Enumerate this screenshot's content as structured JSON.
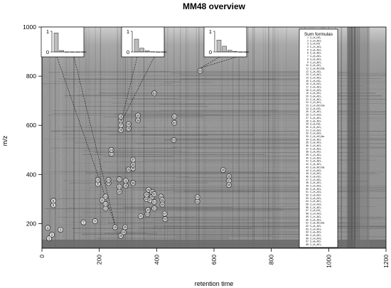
{
  "chart_data": {
    "type": "scatter",
    "title": "MM48 overview",
    "xlabel": "retention time",
    "ylabel": "m/z",
    "xlim": [
      0,
      1200
    ],
    "ylim": [
      100,
      1000
    ],
    "x_ticks": [
      0,
      200,
      400,
      600,
      800,
      1000,
      1200
    ],
    "y_ticks": [
      200,
      400,
      600,
      800,
      1000
    ],
    "background": "dense grayscale LC-MS signal map",
    "colors": {
      "plot_bg": "#8d8d8d",
      "signal_dark": "#2c2c2c",
      "marker_stroke": "#111111",
      "marker_fill": "#d8d8d8",
      "bar_fill": "#bdbdbd"
    },
    "peaks": [
      {
        "label": "1",
        "x": 25,
        "y": 140
      },
      {
        "label": "2",
        "x": 35,
        "y": 155
      },
      {
        "label": "3",
        "x": 65,
        "y": 175
      },
      {
        "label": "4",
        "x": 20,
        "y": 183
      },
      {
        "label": "5",
        "x": 40,
        "y": 275
      },
      {
        "label": "6",
        "x": 40,
        "y": 293
      },
      {
        "label": "7",
        "x": 145,
        "y": 205
      },
      {
        "label": "8",
        "x": 185,
        "y": 210
      },
      {
        "label": "9",
        "x": 195,
        "y": 362
      },
      {
        "label": "10",
        "x": 195,
        "y": 378
      },
      {
        "label": "11",
        "x": 210,
        "y": 295
      },
      {
        "label": "12",
        "x": 222,
        "y": 262
      },
      {
        "label": "13",
        "x": 222,
        "y": 280
      },
      {
        "label": "14",
        "x": 222,
        "y": 310
      },
      {
        "label": "15",
        "x": 232,
        "y": 365
      },
      {
        "label": "16",
        "x": 232,
        "y": 378
      },
      {
        "label": "17",
        "x": 242,
        "y": 485
      },
      {
        "label": "18",
        "x": 242,
        "y": 500
      },
      {
        "label": "19",
        "x": 255,
        "y": 185
      },
      {
        "label": "20",
        "x": 270,
        "y": 330
      },
      {
        "label": "21",
        "x": 270,
        "y": 350
      },
      {
        "label": "22",
        "x": 270,
        "y": 380
      },
      {
        "label": "23",
        "x": 275,
        "y": 150
      },
      {
        "label": "24",
        "x": 285,
        "y": 165
      },
      {
        "label": "25",
        "x": 290,
        "y": 185
      },
      {
        "label": "26",
        "x": 275,
        "y": 580
      },
      {
        "label": "27",
        "x": 275,
        "y": 600
      },
      {
        "label": "28",
        "x": 275,
        "y": 620
      },
      {
        "label": "29",
        "x": 275,
        "y": 635
      },
      {
        "label": "30",
        "x": 292,
        "y": 355
      },
      {
        "label": "31",
        "x": 292,
        "y": 375
      },
      {
        "label": "32",
        "x": 302,
        "y": 420
      },
      {
        "label": "33",
        "x": 302,
        "y": 587
      },
      {
        "label": "34",
        "x": 302,
        "y": 605
      },
      {
        "label": "35",
        "x": 318,
        "y": 425
      },
      {
        "label": "36",
        "x": 318,
        "y": 440
      },
      {
        "label": "37",
        "x": 318,
        "y": 460
      },
      {
        "label": "38",
        "x": 318,
        "y": 365
      },
      {
        "label": "39",
        "x": 335,
        "y": 620
      },
      {
        "label": "40",
        "x": 335,
        "y": 640
      },
      {
        "label": "41",
        "x": 345,
        "y": 230
      },
      {
        "label": "42",
        "x": 368,
        "y": 238
      },
      {
        "label": "43",
        "x": 370,
        "y": 255
      },
      {
        "label": "44",
        "x": 365,
        "y": 300
      },
      {
        "label": "45",
        "x": 365,
        "y": 318
      },
      {
        "label": "46",
        "x": 372,
        "y": 338
      },
      {
        "label": "47",
        "x": 378,
        "y": 295
      },
      {
        "label": "48",
        "x": 385,
        "y": 310
      },
      {
        "label": "49",
        "x": 385,
        "y": 328
      },
      {
        "label": "50",
        "x": 392,
        "y": 320
      },
      {
        "label": "51",
        "x": 392,
        "y": 288
      },
      {
        "label": "52",
        "x": 392,
        "y": 262
      },
      {
        "label": "53",
        "x": 392,
        "y": 730
      },
      {
        "label": "54",
        "x": 415,
        "y": 310
      },
      {
        "label": "55",
        "x": 420,
        "y": 295
      },
      {
        "label": "56",
        "x": 420,
        "y": 278
      },
      {
        "label": "57",
        "x": 428,
        "y": 240
      },
      {
        "label": "58",
        "x": 430,
        "y": 218
      },
      {
        "label": "59",
        "x": 460,
        "y": 540
      },
      {
        "label": "60",
        "x": 462,
        "y": 610
      },
      {
        "label": "61",
        "x": 462,
        "y": 635
      },
      {
        "label": "62",
        "x": 542,
        "y": 290
      },
      {
        "label": "63",
        "x": 542,
        "y": 308
      },
      {
        "label": "64",
        "x": 552,
        "y": 822
      },
      {
        "label": "65",
        "x": 632,
        "y": 418
      },
      {
        "label": "66",
        "x": 652,
        "y": 392
      },
      {
        "label": "67",
        "x": 652,
        "y": 375
      },
      {
        "label": "68",
        "x": 652,
        "y": 357
      }
    ],
    "insets": [
      {
        "bars": [
          0.92,
          0.07,
          0,
          0,
          0,
          0
        ],
        "points_to_peak": "19"
      },
      {
        "bars": [
          0.62,
          0.18,
          0.05,
          0.01,
          0,
          0
        ],
        "points_to_peak": "27"
      },
      {
        "bars": [
          0.58,
          0.28,
          0.08,
          0.02,
          0,
          0
        ],
        "points_to_peak": "64"
      }
    ],
    "inset_y_ticks": [
      "0",
      "1"
    ],
    "legend": {
      "title": "Sum formulas",
      "entries": [
        "C₁₉H₁₇NO₃",
        "C₂₀H₁₉NO₂",
        "C₁₇H₂₁NO",
        "C₂₀H₂₂NO₄",
        "C₁₉H₂₀NO₅",
        "C₂₁H₂₃NO₅",
        "C₁₈H₁₉NO₃",
        "C₁₈H₂₄NO₄",
        "C₂₂H₂₆NO₄",
        "C₁₉H₂₁NO₄",
        "C₁₉H₂₄NO₄Na",
        "C₁₈H₁₅NO₃",
        "C₂₀H₁₉NO₃",
        "C₂₀H₂₁NO₃",
        "C₂₁H₂₁NO₄",
        "C₁₉H₁₉NO₂",
        "C₂₁H₂₄NO₄",
        "C₂₀H₂₂NO₄",
        "C₁₉H₂₁NO₃",
        "C₁₈H₁₉NO₄",
        "C₂₁H₂₃NO₅",
        "C₂₂H₂₅NO₄",
        "C₂₀H₂₅NO₅Na",
        "C₁₈H₁₇NO₄",
        "C₂₁H₂₆NO₃",
        "C₂₀H₂₀NO₄",
        "C₁₉H₂₃NO₅",
        "C₂₁H₂₀NO₅",
        "C₁₉H₁₇NO₅",
        "C₁₈H₂₁NO₄",
        "C₂₂H₂₄NO₅",
        "C₂₀H₂₃NO₃",
        "C₂₁H₂₇NO₄Na",
        "C₁₉H₂₂NO₄",
        "C₁₈H₂₀NO₃",
        "C₂₀H₁₈NO₅",
        "C₂₁H₂₂NO₄",
        "C₁₉H₁₈NO₃",
        "C₂₂H₂₇NO₄",
        "C₂₀H₂₁NO₅",
        "C₁₈H₁₈NO₄",
        "C₂₁H₂₅NO₄",
        "C₁₉H₂₅NO₅Na",
        "C₂₀H₂₄NO₃",
        "C₁₉H₁₉NO₄",
        "C₂₁H₂₁NO₃",
        "C₂₀H₁₇NO₄",
        "C₁₈H₂₂NO₅",
        "C₂₂H₂₃NO₄",
        "C₁₉H₂₀NO₃",
        "C₂₀H₂₆NO₄",
        "C₂₁H₁₉NO₅",
        "C₁₈H₁₆NO₃",
        "C₁₉H₂₃NO₄",
        "C₂₀H₂₀NO₃",
        "C₂₁H₂₄NO₅",
        "C₁₉H₁₇NO₄",
        "C₂₀H₂₅NO₄",
        "C₂₂H₂₁NO₅",
        "C₁₈H₂₀NO₄",
        "C₂₁H₂₂NO₃Na",
        "C₁₉H₂₂NO₅",
        "C₂₀H₁₉NO₄",
        "C₂₁H₂₆NO₄",
        "C₁₈H₁₉NO₅",
        "C₂₀H₂₃NO₄",
        "C₁₉H₁₈NO₅",
        "C₂₁H₂₃NO₃"
      ]
    }
  }
}
